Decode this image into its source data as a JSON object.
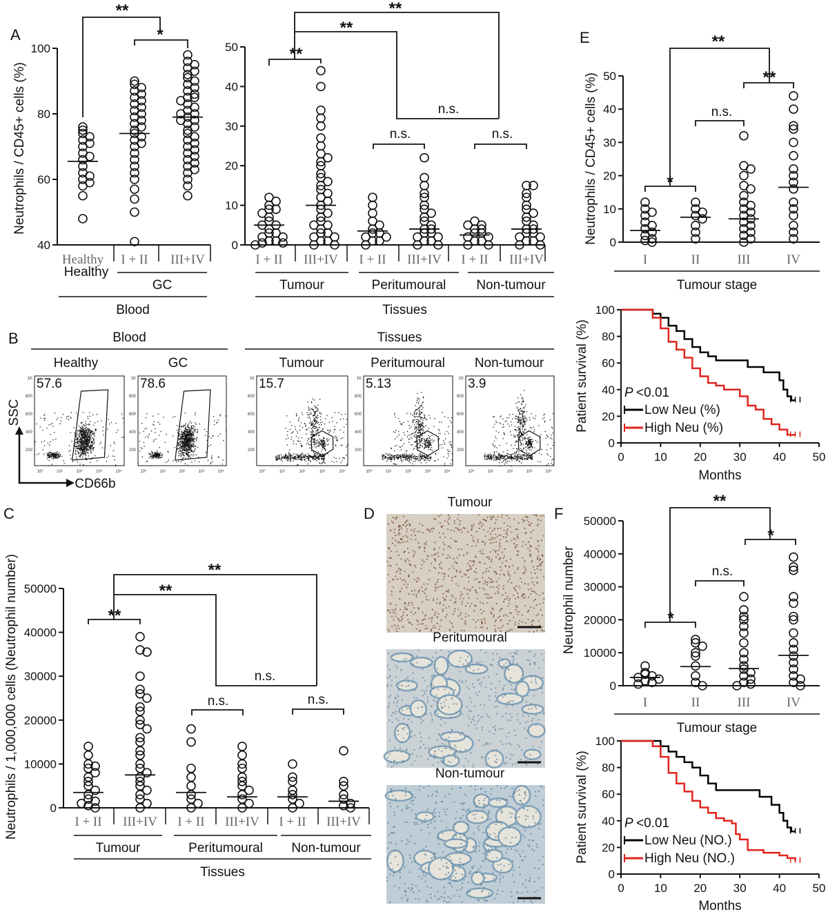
{
  "panels": {
    "A": "A",
    "B": "B",
    "C": "C",
    "D": "D",
    "E": "E",
    "F": "F"
  },
  "labels": {
    "blood": "Blood",
    "tissues": "Tissues",
    "gc": "GC",
    "healthy": "Healthy",
    "tumour": "Tumour",
    "peritumoural": "Peritumoural",
    "non_tumour": "Non-tumour",
    "tumour_stage": "Tumour stage",
    "months": "Months",
    "ssc": "SSC",
    "cd66b": "CD66b"
  },
  "chart_data": [
    {
      "id": "A_blood",
      "type": "scatter",
      "ylabel": "Neutrophils / CD45+ cells (%)",
      "ylim": [
        40,
        100
      ],
      "yticks": [
        40,
        60,
        80,
        100
      ],
      "groups": [
        {
          "label": "Healthy",
          "mean": 65.5,
          "values": [
            76,
            75,
            74,
            73,
            72,
            71,
            70,
            68,
            67,
            66,
            64,
            62,
            61,
            60,
            59,
            58,
            55,
            48
          ]
        },
        {
          "label": "I + II",
          "mean": 74,
          "values": [
            90,
            89,
            88,
            87,
            86,
            85,
            84,
            83,
            82,
            81,
            80,
            79,
            78,
            77,
            76,
            75,
            74,
            73,
            72,
            71,
            70,
            68,
            66,
            64,
            62,
            60,
            57,
            54,
            50,
            41
          ]
        },
        {
          "label": "III+IV",
          "mean": 79,
          "values": [
            98,
            96,
            95,
            94,
            93,
            92,
            91,
            90,
            89,
            88,
            87,
            86,
            85,
            85,
            84,
            83,
            82,
            81,
            80,
            80,
            79,
            78,
            78,
            77,
            76,
            75,
            74,
            73,
            72,
            71,
            70,
            69,
            68,
            67,
            66,
            65,
            64,
            63,
            62,
            60,
            58,
            55
          ]
        }
      ],
      "comparisons": [
        {
          "label": "**"
        },
        {
          "label": "*"
        }
      ]
    },
    {
      "id": "A_tissue",
      "type": "scatter",
      "ylim": [
        0,
        50
      ],
      "yticks": [
        0,
        10,
        20,
        30,
        40,
        50
      ],
      "groups": [
        {
          "label": "I + II",
          "mean": 5,
          "values": [
            12,
            11,
            10,
            9,
            9,
            8,
            7,
            6,
            5,
            5,
            4,
            3,
            3,
            2,
            2,
            1,
            1,
            0.5,
            0.5,
            0
          ]
        },
        {
          "label": "III+IV",
          "mean": 10,
          "values": [
            44,
            40,
            34,
            32,
            30,
            27,
            25,
            23,
            22,
            21,
            20,
            18,
            17,
            16,
            15,
            14,
            13,
            12,
            11,
            10,
            9,
            8,
            7,
            6,
            5,
            5,
            4,
            3,
            3,
            2,
            2,
            1,
            1,
            0,
            0
          ]
        },
        {
          "label": "I + II",
          "mean": 3.5,
          "values": [
            12,
            10,
            8,
            6,
            5,
            4,
            3,
            3,
            2,
            2,
            1,
            1,
            0
          ]
        },
        {
          "label": "III+IV",
          "mean": 4,
          "values": [
            22,
            17,
            15,
            13,
            12,
            10,
            9,
            8,
            7,
            6,
            5,
            4,
            4,
            3,
            3,
            2,
            2,
            1,
            1,
            0,
            0
          ]
        },
        {
          "label": "I + II",
          "mean": 2.5,
          "values": [
            6,
            5,
            5,
            4,
            4,
            3,
            3,
            2,
            2,
            1,
            1,
            0,
            0
          ]
        },
        {
          "label": "III+IV",
          "mean": 4,
          "values": [
            15,
            15,
            13,
            12,
            10,
            9,
            8,
            7,
            6,
            5,
            4,
            4,
            3,
            3,
            2,
            2,
            1,
            1,
            0,
            0
          ]
        }
      ],
      "comparisons": [
        {
          "label": "**"
        },
        {
          "label": "**"
        },
        {
          "label": "**"
        },
        {
          "label": "n.s."
        },
        {
          "label": "n.s."
        },
        {
          "label": "n.s."
        }
      ]
    },
    {
      "id": "E_dot",
      "type": "scatter",
      "ylabel": "Neutrophils / CD45+ cells (%)",
      "ylim": [
        0,
        50
      ],
      "yticks": [
        0,
        10,
        20,
        30,
        40,
        50
      ],
      "groups": [
        {
          "label": "I",
          "mean": 3.5,
          "values": [
            12,
            10,
            9,
            8,
            6,
            5,
            4,
            3,
            2,
            1,
            0.5,
            0
          ]
        },
        {
          "label": "II",
          "mean": 7.5,
          "values": [
            12,
            10,
            9,
            8,
            7,
            5,
            3,
            1
          ]
        },
        {
          "label": "III",
          "mean": 7,
          "values": [
            32,
            23,
            22,
            20,
            17,
            16,
            14,
            12,
            11,
            10,
            9,
            8,
            7,
            6,
            5,
            4,
            3,
            2,
            1,
            0
          ]
        },
        {
          "label": "IV",
          "mean": 16.5,
          "values": [
            44,
            40,
            35,
            34,
            30,
            26,
            22,
            20,
            18,
            16,
            12,
            10,
            8,
            5,
            3,
            1
          ]
        }
      ],
      "comparisons": [
        {
          "label": "*"
        },
        {
          "label": "n.s."
        },
        {
          "label": "**"
        },
        {
          "label": "**"
        }
      ]
    },
    {
      "id": "C_dot",
      "type": "scatter",
      "ylabel": "Neutrophils / 1,000,000 cells (Neutrophil number)",
      "ylim": [
        0,
        50000
      ],
      "yticks": [
        0,
        10000,
        20000,
        30000,
        40000,
        50000
      ],
      "groups": [
        {
          "label": "I + II",
          "mean": 3500,
          "values": [
            14000,
            12000,
            10000,
            9500,
            9000,
            8000,
            7000,
            6000,
            5000,
            4000,
            3000,
            2000,
            1500,
            1000,
            500,
            0
          ]
        },
        {
          "label": "III+IV",
          "mean": 7500,
          "values": [
            39000,
            36000,
            35500,
            30000,
            27000,
            26000,
            25000,
            23000,
            22000,
            20000,
            19000,
            18000,
            16000,
            15000,
            13000,
            12000,
            10000,
            9000,
            8000,
            7000,
            6000,
            5000,
            4000,
            3000,
            2000,
            1000,
            0
          ]
        },
        {
          "label": "I + II",
          "mean": 3500,
          "values": [
            18000,
            15000,
            9000,
            7000,
            5000,
            3000,
            2000,
            1000,
            0
          ]
        },
        {
          "label": "III+IV",
          "mean": 2500,
          "values": [
            14000,
            12000,
            10000,
            9000,
            7000,
            6000,
            5000,
            4000,
            3000,
            2000,
            1000,
            0
          ]
        },
        {
          "label": "I + II",
          "mean": 2500,
          "values": [
            10000,
            7000,
            6000,
            4000,
            3000,
            2000,
            1000,
            0
          ]
        },
        {
          "label": "III+IV",
          "mean": 1500,
          "values": [
            13000,
            6000,
            5000,
            3000,
            2000,
            1000,
            500,
            0
          ]
        }
      ],
      "comparisons": [
        {
          "label": "**"
        },
        {
          "label": "**"
        },
        {
          "label": "**"
        },
        {
          "label": "n.s."
        },
        {
          "label": "n.s."
        },
        {
          "label": "n.s."
        }
      ]
    },
    {
      "id": "F_dot",
      "type": "scatter",
      "ylabel": "Neutrophil number",
      "ylim": [
        0,
        50000
      ],
      "yticks": [
        0,
        10000,
        20000,
        30000,
        40000,
        50000
      ],
      "groups": [
        {
          "label": "I",
          "mean": 2500,
          "values": [
            6000,
            4000,
            3500,
            3000,
            2500,
            2000,
            1500,
            1000,
            500
          ]
        },
        {
          "label": "II",
          "mean": 5800,
          "values": [
            14000,
            13000,
            12000,
            10000,
            9000,
            6000,
            3000,
            1000,
            0
          ]
        },
        {
          "label": "III",
          "mean": 5200,
          "values": [
            27000,
            23000,
            21000,
            20000,
            18000,
            16000,
            13000,
            10000,
            8000,
            6000,
            5000,
            4000,
            3000,
            2000,
            1000,
            500,
            0
          ]
        },
        {
          "label": "IV",
          "mean": 9200,
          "values": [
            39000,
            36000,
            35000,
            27000,
            25000,
            21000,
            20000,
            16000,
            13000,
            11000,
            9000,
            7000,
            5000,
            3000,
            2000,
            1000,
            0
          ]
        }
      ],
      "comparisons": [
        {
          "label": "*"
        },
        {
          "label": "n.s."
        },
        {
          "label": "*"
        },
        {
          "label": "**"
        }
      ]
    },
    {
      "id": "E_surv",
      "type": "line",
      "ylabel": "Patient survival (%)",
      "xlabel": "Months",
      "xlim": [
        0,
        50
      ],
      "ylim": [
        0,
        100
      ],
      "xticks": [
        0,
        10,
        20,
        30,
        40,
        50
      ],
      "yticks": [
        0,
        20,
        40,
        60,
        80,
        100
      ],
      "pvalue": "<0.01",
      "p": "P",
      "series": [
        {
          "name": "Low Neu (%)",
          "color": "#000000",
          "points": [
            [
              0,
              100
            ],
            [
              7,
              100
            ],
            [
              8,
              97
            ],
            [
              10,
              94
            ],
            [
              12,
              88
            ],
            [
              14,
              84
            ],
            [
              16,
              78
            ],
            [
              18,
              72
            ],
            [
              20,
              68
            ],
            [
              22,
              65
            ],
            [
              24,
              62
            ],
            [
              30,
              62
            ],
            [
              32,
              57
            ],
            [
              36,
              53
            ],
            [
              40,
              47
            ],
            [
              41,
              40
            ],
            [
              42,
              35
            ],
            [
              43,
              32
            ],
            [
              44,
              32
            ]
          ]
        },
        {
          "name": "High Neu (%)",
          "color": "#e0231c",
          "points": [
            [
              0,
              100
            ],
            [
              7,
              100
            ],
            [
              8,
              94
            ],
            [
              10,
              86
            ],
            [
              12,
              76
            ],
            [
              14,
              70
            ],
            [
              16,
              64
            ],
            [
              18,
              56
            ],
            [
              20,
              50
            ],
            [
              22,
              45
            ],
            [
              24,
              43
            ],
            [
              26,
              40
            ],
            [
              30,
              35
            ],
            [
              32,
              28
            ],
            [
              34,
              25
            ],
            [
              36,
              18
            ],
            [
              38,
              14
            ],
            [
              40,
              10
            ],
            [
              42,
              6
            ],
            [
              44,
              6
            ]
          ]
        }
      ]
    },
    {
      "id": "F_surv",
      "type": "line",
      "ylabel": "Patient survival (%)",
      "xlabel": "Months",
      "xlim": [
        0,
        50
      ],
      "ylim": [
        0,
        100
      ],
      "xticks": [
        0,
        10,
        20,
        30,
        40,
        50
      ],
      "yticks": [
        0,
        20,
        40,
        60,
        80,
        100
      ],
      "pvalue": "<0.01",
      "p": "P",
      "series": [
        {
          "name": "Low Neu (NO.)",
          "color": "#000000",
          "points": [
            [
              0,
              100
            ],
            [
              8,
              100
            ],
            [
              10,
              96
            ],
            [
              12,
              92
            ],
            [
              14,
              88
            ],
            [
              16,
              84
            ],
            [
              18,
              80
            ],
            [
              20,
              74
            ],
            [
              22,
              68
            ],
            [
              24,
              63
            ],
            [
              34,
              63
            ],
            [
              35,
              58
            ],
            [
              38,
              52
            ],
            [
              40,
              46
            ],
            [
              41,
              40
            ],
            [
              42,
              35
            ],
            [
              43,
              32
            ],
            [
              44,
              32
            ]
          ]
        },
        {
          "name": "High Neu (NO.)",
          "color": "#e0231c",
          "points": [
            [
              0,
              100
            ],
            [
              7,
              100
            ],
            [
              8,
              96
            ],
            [
              10,
              88
            ],
            [
              12,
              76
            ],
            [
              14,
              68
            ],
            [
              16,
              62
            ],
            [
              18,
              55
            ],
            [
              20,
              50
            ],
            [
              22,
              46
            ],
            [
              24,
              42
            ],
            [
              26,
              40
            ],
            [
              28,
              38
            ],
            [
              29,
              30
            ],
            [
              30,
              26
            ],
            [
              32,
              18
            ],
            [
              36,
              16
            ],
            [
              40,
              14
            ],
            [
              42,
              12
            ],
            [
              44,
              10
            ]
          ]
        }
      ]
    }
  ],
  "flow": {
    "yticks": [
      "1K",
      "800",
      "600",
      "400",
      "200"
    ],
    "xticks": [
      "10⁰",
      "10¹",
      "10²",
      "10³",
      "10⁴"
    ],
    "plots": [
      {
        "title": "Healthy",
        "percent": "57.6"
      },
      {
        "title": "GC",
        "percent": "78.6"
      },
      {
        "title": "Tumour",
        "percent": "15.7"
      },
      {
        "title": "Peritumoural",
        "percent": "5.13"
      },
      {
        "title": "Non-tumour",
        "percent": "3.9"
      }
    ]
  },
  "histology": [
    {
      "title": "Tumour"
    },
    {
      "title": "Peritumoural"
    },
    {
      "title": "Non-tumour"
    }
  ]
}
